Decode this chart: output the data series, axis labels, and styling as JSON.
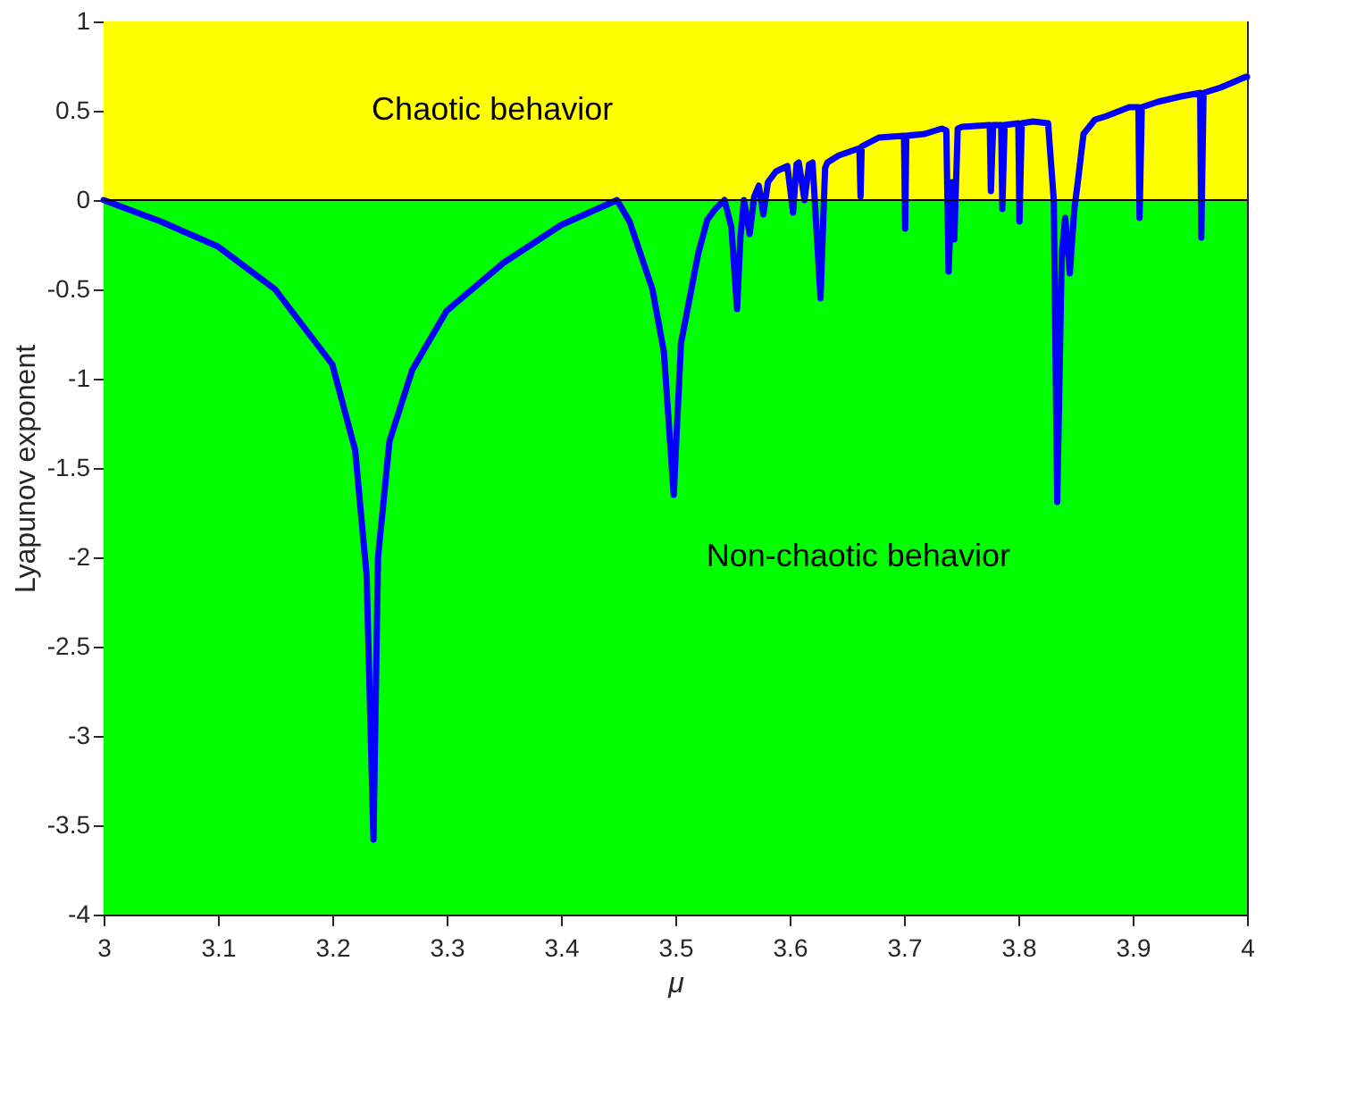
{
  "chart_data": {
    "type": "line",
    "xlabel": "μ",
    "ylabel": "Lyapunov exponent",
    "x": [
      3.0,
      3.05,
      3.1,
      3.15,
      3.2,
      3.22,
      3.23,
      3.236,
      3.24,
      3.25,
      3.27,
      3.3,
      3.35,
      3.4,
      3.449,
      3.46,
      3.48,
      3.49,
      3.4986,
      3.505,
      3.52,
      3.528,
      3.535,
      3.543,
      3.549,
      3.554,
      3.557,
      3.56,
      3.565,
      3.569,
      3.573,
      3.577,
      3.581,
      3.588,
      3.598,
      3.603,
      3.606,
      3.608,
      3.613,
      3.617,
      3.62,
      3.627,
      3.631,
      3.633,
      3.643,
      3.661,
      3.662,
      3.663,
      3.678,
      3.7,
      3.701,
      3.702,
      3.718,
      3.733,
      3.737,
      3.739,
      3.742,
      3.744,
      3.747,
      3.751,
      3.775,
      3.776,
      3.778,
      3.785,
      3.786,
      3.788,
      3.8,
      3.801,
      3.803,
      3.813,
      3.826,
      3.831,
      3.834,
      3.838,
      3.841,
      3.845,
      3.849,
      3.852,
      3.857,
      3.867,
      3.877,
      3.897,
      3.905,
      3.906,
      3.908,
      3.922,
      3.942,
      3.959,
      3.96,
      3.962,
      3.977,
      3.999,
      4.0
    ],
    "series": [
      {
        "color": "#0000ff",
        "values": [
          0,
          -0.12,
          -0.26,
          -0.5,
          -0.92,
          -1.4,
          -2.1,
          -3.58,
          -2.0,
          -1.35,
          -0.95,
          -0.62,
          -0.35,
          -0.14,
          0,
          -0.12,
          -0.5,
          -0.85,
          -1.65,
          -0.8,
          -0.3,
          -0.11,
          -0.05,
          0,
          -0.15,
          -0.61,
          -0.2,
          0,
          -0.19,
          0.02,
          0.08,
          -0.08,
          0.1,
          0.16,
          0.19,
          -0.07,
          0.2,
          0.21,
          0.0,
          0.2,
          0.21,
          -0.55,
          0.18,
          0.21,
          0.25,
          0.29,
          0.02,
          0.3,
          0.35,
          0.36,
          -0.16,
          0.36,
          0.37,
          0.4,
          0.39,
          -0.4,
          0.1,
          -0.22,
          0.4,
          0.41,
          0.42,
          0.05,
          0.42,
          0.42,
          -0.05,
          0.42,
          0.43,
          -0.12,
          0.43,
          0.44,
          0.43,
          0.0,
          -1.69,
          -0.3,
          -0.1,
          -0.41,
          -0.05,
          0.1,
          0.37,
          0.45,
          0.47,
          0.52,
          0.52,
          -0.1,
          0.52,
          0.55,
          0.58,
          0.6,
          -0.21,
          0.6,
          0.63,
          0.69,
          0.69
        ]
      }
    ],
    "xlim": [
      3,
      4
    ],
    "xticks": [
      3,
      3.1,
      3.2,
      3.3,
      3.4,
      3.5,
      3.6,
      3.7,
      3.8,
      3.9,
      4
    ],
    "ylim": [
      -4,
      1
    ],
    "yticks": [
      -4,
      -3.5,
      -3,
      -2.5,
      -2,
      -1.5,
      -1,
      -0.5,
      0,
      0.5,
      1
    ],
    "bands": [
      {
        "axis": "y",
        "from": 0,
        "to": 1,
        "label": "Chaotic behavior",
        "color": "#ffff00"
      },
      {
        "axis": "y",
        "from": -4,
        "to": 0,
        "label": "Non-chaotic behavior",
        "color": "#00ff00"
      }
    ],
    "ref_lines": [
      {
        "axis": "y",
        "value": 0
      }
    ],
    "grid": false,
    "marker": "none",
    "line_style": "solid"
  }
}
